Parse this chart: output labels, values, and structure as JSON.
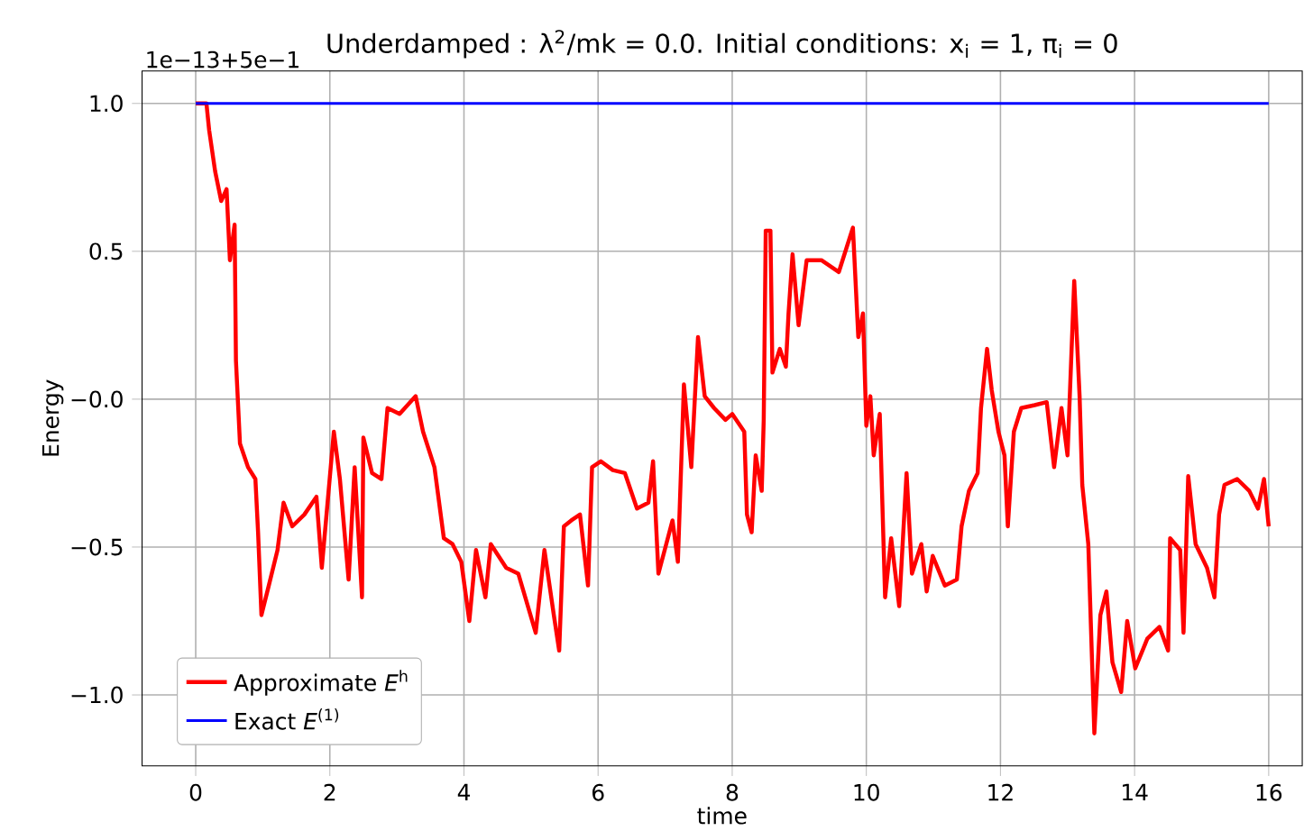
{
  "chart_data": {
    "type": "line",
    "title": "Underdamped : λ$^{2}$/mk = 0.0. Initial conditions: x$_{i}$ = 1, π$_{i}$ = 0",
    "xlabel": "time",
    "ylabel": "Energy",
    "annotations": [
      "1e−13+5e−1"
    ],
    "xlim": [
      -0.8,
      16.5
    ],
    "ylim": [
      -1.24,
      1.11
    ],
    "xticks": [
      0,
      2,
      4,
      6,
      8,
      10,
      12,
      14,
      16
    ],
    "yticks": [
      {
        "value": -1.0,
        "label": "−1.0"
      },
      {
        "value": -0.5,
        "label": "−0.5"
      },
      {
        "value": 0,
        "label": "−0.0"
      },
      {
        "value": 0.5,
        "label": "0.5"
      },
      {
        "value": 1.0,
        "label": "1.0"
      }
    ],
    "grid": true,
    "legend": "bottom left",
    "marker": "none",
    "line_style": "solid",
    "series": [
      {
        "name": "Approximate *E*$^{h}$",
        "color": "#ff0000",
        "x": [
          0,
          0.16,
          0.2,
          0.29,
          0.38,
          0.46,
          0.51,
          0.58,
          0.6,
          0.66,
          0.78,
          0.89,
          0.93,
          0.98,
          1.09,
          1.22,
          1.31,
          1.44,
          1.62,
          1.8,
          1.88,
          2.06,
          2.15,
          2.28,
          2.37,
          2.48,
          2.5,
          2.63,
          2.77,
          2.86,
          3.04,
          3.28,
          3.39,
          3.56,
          3.7,
          3.83,
          3.96,
          4.08,
          4.18,
          4.32,
          4.4,
          4.63,
          4.81,
          5.07,
          5.2,
          5.34,
          5.42,
          5.49,
          5.6,
          5.73,
          5.85,
          5.91,
          6.04,
          6.22,
          6.4,
          6.58,
          6.75,
          6.82,
          6.9,
          7.11,
          7.19,
          7.28,
          7.39,
          7.49,
          7.59,
          7.73,
          7.9,
          8.0,
          8.18,
          8.22,
          8.29,
          8.35,
          8.44,
          8.47,
          8.5,
          8.57,
          8.6,
          8.71,
          8.8,
          8.84,
          8.9,
          8.99,
          9.11,
          9.33,
          9.59,
          9.8,
          9.88,
          9.95,
          10.0,
          10.06,
          10.11,
          10.2,
          10.28,
          10.37,
          10.49,
          10.6,
          10.68,
          10.82,
          10.9,
          10.99,
          11.17,
          11.35,
          11.42,
          11.53,
          11.66,
          11.71,
          11.8,
          11.87,
          11.97,
          12.06,
          12.11,
          12.2,
          12.31,
          12.51,
          12.69,
          12.8,
          12.91,
          13.0,
          13.1,
          13.18,
          13.22,
          13.31,
          13.4,
          13.49,
          13.58,
          13.67,
          13.8,
          13.89,
          14.01,
          14.19,
          14.37,
          14.5,
          14.53,
          14.68,
          14.73,
          14.8,
          14.91,
          15.08,
          15.19,
          15.26,
          15.34,
          15.53,
          15.71,
          15.84,
          15.93,
          16.0
        ],
        "values": [
          1.0,
          1.0,
          0.91,
          0.77,
          0.67,
          0.71,
          0.47,
          0.59,
          0.13,
          -0.15,
          -0.23,
          -0.27,
          -0.45,
          -0.73,
          -0.63,
          -0.51,
          -0.35,
          -0.43,
          -0.39,
          -0.33,
          -0.57,
          -0.11,
          -0.27,
          -0.61,
          -0.23,
          -0.67,
          -0.13,
          -0.25,
          -0.27,
          -0.03,
          -0.05,
          0.01,
          -0.11,
          -0.23,
          -0.47,
          -0.49,
          -0.55,
          -0.75,
          -0.51,
          -0.67,
          -0.49,
          -0.57,
          -0.59,
          -0.79,
          -0.51,
          -0.73,
          -0.85,
          -0.43,
          -0.41,
          -0.39,
          -0.63,
          -0.23,
          -0.21,
          -0.24,
          -0.25,
          -0.37,
          -0.35,
          -0.21,
          -0.59,
          -0.41,
          -0.55,
          0.05,
          -0.23,
          0.21,
          0.01,
          -0.03,
          -0.07,
          -0.05,
          -0.11,
          -0.39,
          -0.45,
          -0.19,
          -0.31,
          -0.07,
          0.57,
          0.57,
          0.09,
          0.17,
          0.11,
          0.29,
          0.49,
          0.25,
          0.47,
          0.47,
          0.43,
          0.58,
          0.21,
          0.29,
          -0.09,
          0.01,
          -0.19,
          -0.05,
          -0.67,
          -0.47,
          -0.7,
          -0.25,
          -0.59,
          -0.49,
          -0.65,
          -0.53,
          -0.63,
          -0.61,
          -0.43,
          -0.31,
          -0.25,
          -0.03,
          0.17,
          0.03,
          -0.11,
          -0.19,
          -0.43,
          -0.11,
          -0.03,
          -0.02,
          -0.01,
          -0.23,
          -0.03,
          -0.19,
          0.4,
          0.01,
          -0.29,
          -0.49,
          -1.13,
          -0.73,
          -0.65,
          -0.89,
          -0.99,
          -0.75,
          -0.91,
          -0.81,
          -0.77,
          -0.85,
          -0.47,
          -0.51,
          -0.79,
          -0.26,
          -0.49,
          -0.57,
          -0.67,
          -0.39,
          -0.29,
          -0.27,
          -0.31,
          -0.37,
          -0.27,
          -0.43
        ]
      },
      {
        "name": "Exact *E*$^{(1)}$",
        "color": "#0000ff",
        "x": [
          0,
          4,
          8,
          12,
          16
        ],
        "values": [
          1.0,
          1.0,
          1.0,
          1.0,
          1.0
        ]
      }
    ]
  }
}
